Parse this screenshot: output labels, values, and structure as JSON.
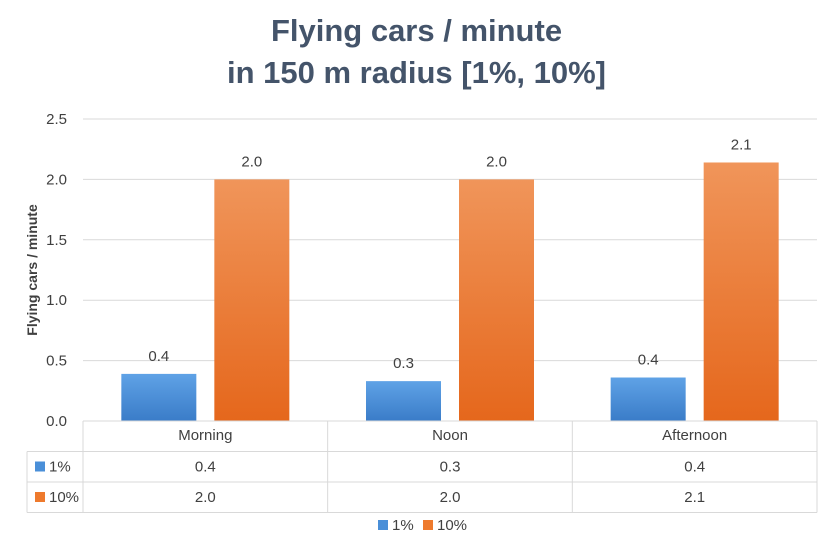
{
  "chart_data": {
    "type": "bar",
    "title_line1": "Flying cars / minute",
    "title_line2": "in 150 m radius [1%, 10%]",
    "ylabel": "Flying cars / minute",
    "ylim": [
      0,
      2.5
    ],
    "yticks": [
      "0.0",
      "0.5",
      "1.0",
      "1.5",
      "2.0",
      "2.5"
    ],
    "categories": [
      "Morning",
      "Noon",
      "Afternoon"
    ],
    "grid": true,
    "legend_position": "bottom",
    "series": [
      {
        "name": "1%",
        "color": "#4A8FD8",
        "values": [
          0.39,
          0.33,
          0.36
        ],
        "labels": [
          "0.4",
          "0.3",
          "0.4"
        ]
      },
      {
        "name": "10%",
        "color": "#EE7A2D",
        "values": [
          2.0,
          2.0,
          2.14
        ],
        "labels": [
          "2.0",
          "2.0",
          "2.1"
        ]
      }
    ]
  }
}
